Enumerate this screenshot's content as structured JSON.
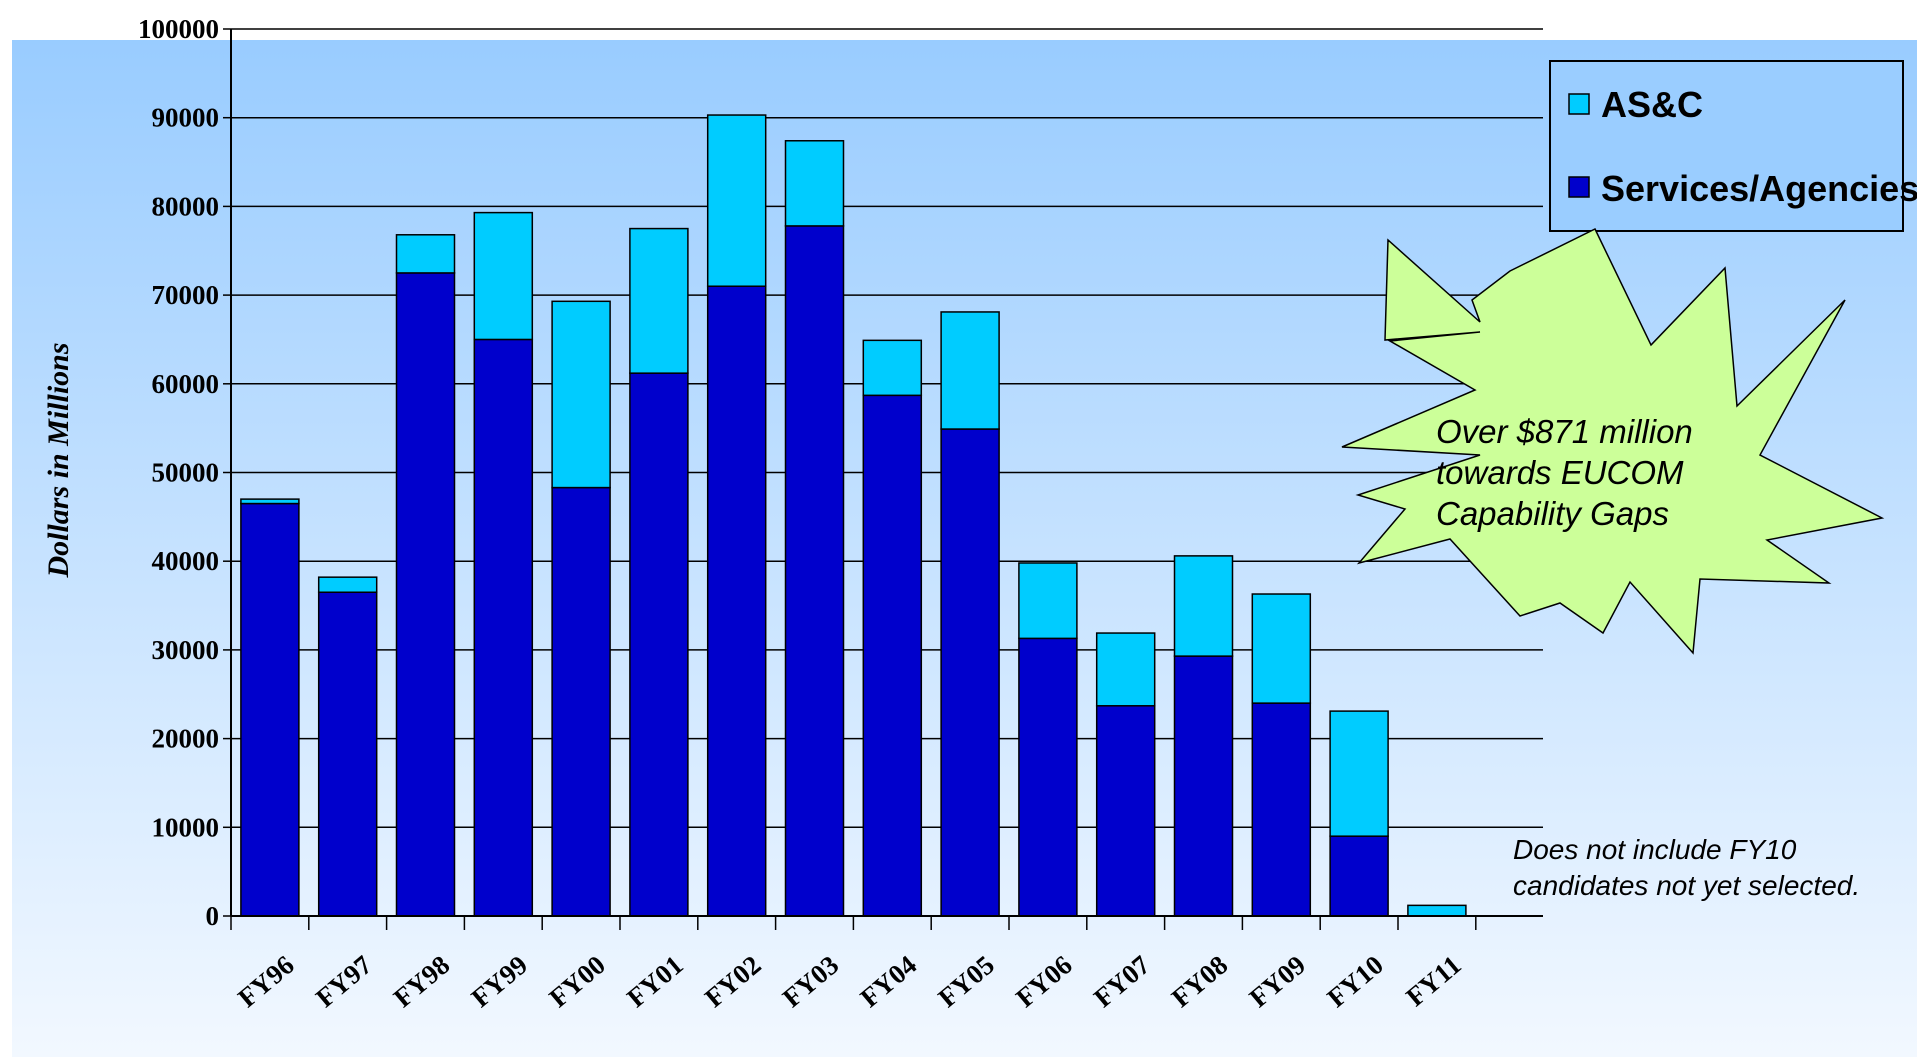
{
  "colors": {
    "services": "#0000CC",
    "asc": "#00CCFF",
    "burst_fill": "#CCFF99",
    "legend_bg": "#9ACDFF",
    "bg_top": "#99CCFF",
    "bg_bottom": "#F2F8FF"
  },
  "chart_data": {
    "type": "bar",
    "stacked": true,
    "categories": [
      "FY96",
      "FY97",
      "FY98",
      "FY99",
      "FY00",
      "FY01",
      "FY02",
      "FY03",
      "FY04",
      "FY05",
      "FY06",
      "FY07",
      "FY08",
      "FY09",
      "FY10",
      "FY11"
    ],
    "series": [
      {
        "name": "Services/Agencies",
        "values": [
          46500,
          36500,
          72500,
          65000,
          48300,
          61200,
          71000,
          77800,
          58700,
          54900,
          31300,
          23700,
          29300,
          24000,
          9000,
          0
        ]
      },
      {
        "name": "AS&C",
        "values": [
          500,
          1700,
          4300,
          14300,
          21000,
          16300,
          19300,
          9600,
          6200,
          13200,
          8500,
          8200,
          11300,
          12300,
          14100,
          1200
        ]
      }
    ],
    "ylabel": "Dollars in Millions",
    "ylim": [
      0,
      100000
    ],
    "yticks": [
      "0",
      "10000",
      "20000",
      "30000",
      "40000",
      "50000",
      "60000",
      "70000",
      "80000",
      "90000",
      "100000"
    ],
    "grid": true,
    "legend_position": "top-right",
    "annotations": [
      {
        "name": "callout",
        "lines": [
          "Over $871 million",
          "towards EUCOM",
          "Capability Gaps"
        ]
      },
      {
        "name": "footnote",
        "lines": [
          "Does not include FY10",
          "candidates not yet selected."
        ]
      }
    ]
  }
}
